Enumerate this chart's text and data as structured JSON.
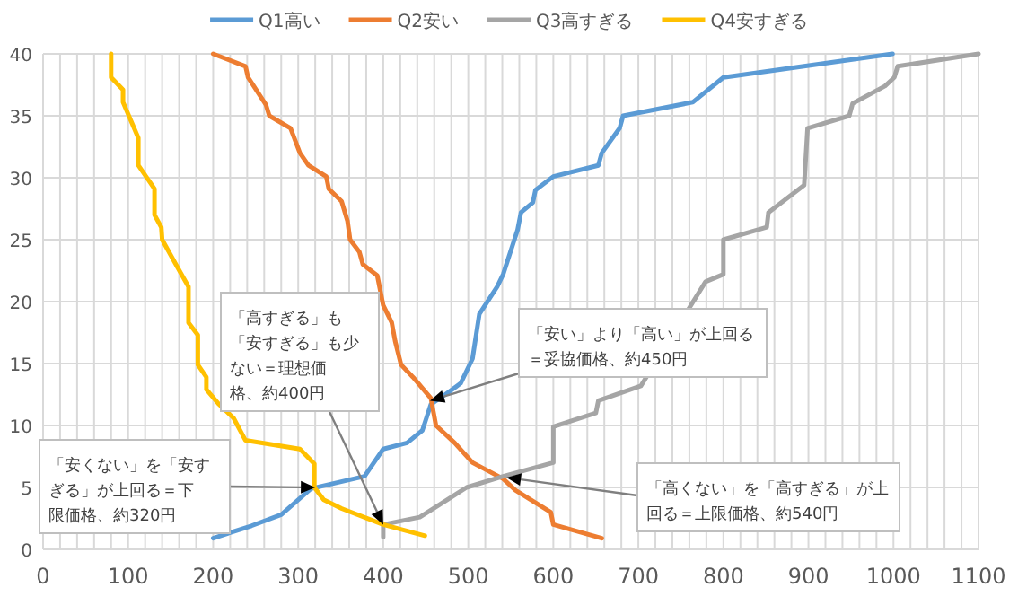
{
  "chart_data": {
    "type": "line",
    "legend": "top",
    "grid": true,
    "marker": "none",
    "line_style": "solid",
    "xlim": [
      0,
      1100
    ],
    "ylim": [
      0,
      40
    ],
    "xticks": [
      0,
      {
        "value": 20,
        "label": null
      },
      {
        "value": 40,
        "label": null
      },
      {
        "value": 60,
        "label": null
      },
      {
        "value": 80,
        "label": null
      },
      100,
      {
        "value": 120,
        "label": null
      },
      {
        "value": 140,
        "label": null
      },
      {
        "value": 160,
        "label": null
      },
      {
        "value": 180,
        "label": null
      },
      200,
      {
        "value": 220,
        "label": null
      },
      {
        "value": 240,
        "label": null
      },
      {
        "value": 260,
        "label": null
      },
      {
        "value": 280,
        "label": null
      },
      300,
      {
        "value": 320,
        "label": null
      },
      {
        "value": 340,
        "label": null
      },
      {
        "value": 360,
        "label": null
      },
      {
        "value": 380,
        "label": null
      },
      400,
      {
        "value": 420,
        "label": null
      },
      {
        "value": 440,
        "label": null
      },
      {
        "value": 460,
        "label": null
      },
      {
        "value": 480,
        "label": null
      },
      500,
      {
        "value": 520,
        "label": null
      },
      {
        "value": 540,
        "label": null
      },
      {
        "value": 560,
        "label": null
      },
      {
        "value": 580,
        "label": null
      },
      600,
      {
        "value": 620,
        "label": null
      },
      {
        "value": 640,
        "label": null
      },
      {
        "value": 660,
        "label": null
      },
      {
        "value": 680,
        "label": null
      },
      700,
      {
        "value": 720,
        "label": null
      },
      {
        "value": 740,
        "label": null
      },
      {
        "value": 760,
        "label": null
      },
      {
        "value": 780,
        "label": null
      },
      800,
      {
        "value": 820,
        "label": null
      },
      {
        "value": 840,
        "label": null
      },
      {
        "value": 860,
        "label": null
      },
      {
        "value": 880,
        "label": null
      },
      900,
      {
        "value": 920,
        "label": null
      },
      {
        "value": 940,
        "label": null
      },
      {
        "value": 960,
        "label": null
      },
      {
        "value": 980,
        "label": null
      },
      1000,
      {
        "value": 1020,
        "label": null
      },
      {
        "value": 1040,
        "label": null
      },
      {
        "value": 1060,
        "label": null
      },
      {
        "value": 1080,
        "label": null
      },
      1100
    ],
    "yticks": [
      0,
      5,
      10,
      15,
      20,
      25,
      30,
      35,
      40
    ],
    "series": [
      {
        "name": "Q1高い",
        "color": "#5b9bd5",
        "x": [
          200,
          245,
          280,
          315,
          378,
          400,
          428,
          446,
          456,
          473,
          491,
          505,
          513,
          534,
          541,
          558,
          562,
          576,
          579,
          600,
          653,
          657,
          678,
          682,
          764,
          800,
          999
        ],
        "values": [
          0.9,
          1.9,
          2.8,
          4.9,
          5.9,
          8.1,
          8.6,
          9.6,
          11.7,
          12.5,
          13.4,
          15.4,
          19,
          21.2,
          22.2,
          25.8,
          27.2,
          28,
          29,
          30.1,
          31,
          32,
          34,
          35,
          36.1,
          38.1,
          40
        ]
      },
      {
        "name": "Q2安い",
        "color": "#ed7d31",
        "x": [
          200,
          238,
          241,
          262,
          266,
          291,
          302,
          312,
          333,
          336,
          351,
          358,
          361,
          372,
          376,
          393,
          400,
          410,
          414,
          421,
          435,
          456,
          462,
          484,
          505,
          541,
          555,
          597,
          600,
          657
        ],
        "values": [
          40,
          39,
          38.1,
          35.9,
          35,
          34,
          32,
          31,
          30.1,
          29.1,
          28.1,
          26.5,
          25,
          24,
          23,
          22.1,
          19.7,
          18.3,
          16.8,
          14.9,
          13.9,
          12.2,
          10,
          8.6,
          7,
          5.7,
          4.8,
          3,
          2,
          0.9
        ]
      },
      {
        "name": "Q3高すぎる",
        "color": "#a5a5a5",
        "x": [
          400,
          400,
          443,
          498,
          541,
          600,
          600,
          650,
          653,
          703,
          779,
          800,
          800,
          851,
          853,
          895,
          899,
          948,
          952,
          990,
          1001,
          1005,
          1100
        ],
        "values": [
          1,
          2,
          2.6,
          5,
          5.9,
          7,
          9.9,
          11,
          12,
          13.2,
          21.6,
          22.2,
          25,
          26,
          27.2,
          29.4,
          34,
          35,
          36,
          37.4,
          38.1,
          39,
          40
        ]
      },
      {
        "name": "Q4安すぎる",
        "color": "#ffc000",
        "x": [
          80,
          80,
          94,
          94,
          112,
          112,
          131,
          131,
          139,
          140,
          157,
          171,
          171,
          182,
          182,
          192,
          192,
          207,
          224,
          238,
          302,
          319,
          319,
          330,
          351,
          400,
          449
        ],
        "values": [
          40,
          38.1,
          37.1,
          36.1,
          33.2,
          31,
          29.1,
          27,
          26,
          25,
          22.9,
          21.2,
          18.3,
          17.3,
          14.9,
          13.9,
          12.9,
          11.7,
          10.6,
          8.8,
          8.1,
          6.9,
          5,
          4,
          3.3,
          2,
          1.1
        ]
      }
    ],
    "annotations": [
      {
        "text": "「安くない」を「安すぎる」が上回る＝下限価格、約320円",
        "x": 320,
        "y": 5
      },
      {
        "text": "「高すぎる」も「安すぎる」も少ない＝理想価格、約400円",
        "x": 400,
        "y": 2
      },
      {
        "text": "「安い」より「高い」が上回る＝妥協価格、約450円",
        "x": 455,
        "y": 12
      },
      {
        "text": "「高くない」を「高すぎる」が上回る＝上限価格、約540円",
        "x": 545,
        "y": 5.8
      }
    ]
  }
}
